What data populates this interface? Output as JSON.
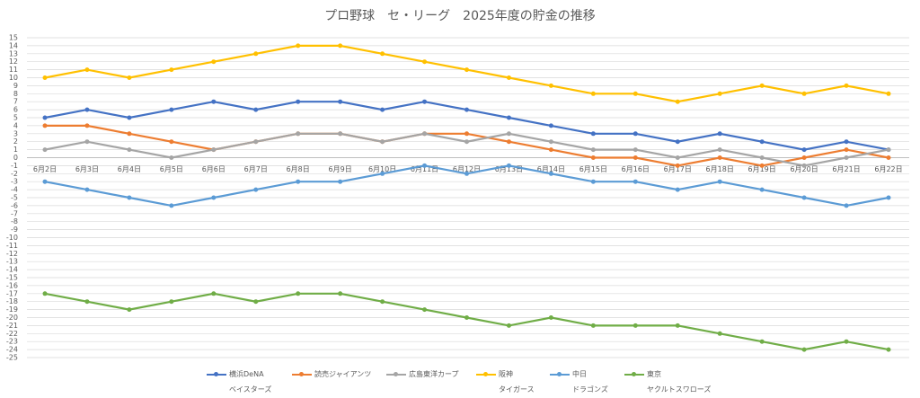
{
  "chart_data": {
    "type": "line",
    "title": "プロ野球　セ・リーグ　2025年度の貯金の推移",
    "categories": [
      "6月2日",
      "6月3日",
      "6月4日",
      "6月5日",
      "6月6日",
      "6月7日",
      "6月8日",
      "6月9日",
      "6月10日",
      "6月11日",
      "6月12日",
      "6月13日",
      "6月14日",
      "6月15日",
      "6月16日",
      "6月17日",
      "6月18日",
      "6月19日",
      "6月20日",
      "6月21日",
      "6月22日"
    ],
    "series": [
      {
        "name": "横浜DeNA\nベイスターズ",
        "color": "#4472c4",
        "values": [
          5,
          6,
          5,
          6,
          7,
          6,
          7,
          7,
          6,
          7,
          6,
          5,
          4,
          3,
          3,
          2,
          3,
          2,
          1,
          2,
          1
        ]
      },
      {
        "name": "読売ジャイアンツ",
        "color": "#ed7d31",
        "values": [
          4,
          4,
          3,
          2,
          1,
          2,
          3,
          3,
          2,
          3,
          3,
          2,
          1,
          0,
          0,
          -1,
          0,
          -1,
          0,
          1,
          0
        ]
      },
      {
        "name": "広島東洋カープ",
        "color": "#a5a5a5",
        "values": [
          1,
          2,
          1,
          0,
          1,
          2,
          3,
          3,
          2,
          3,
          2,
          3,
          2,
          1,
          1,
          0,
          1,
          0,
          -1,
          0,
          1
        ]
      },
      {
        "name": "阪神\nタイガース",
        "color": "#ffc000",
        "values": [
          10,
          11,
          10,
          11,
          12,
          13,
          14,
          14,
          13,
          12,
          11,
          10,
          9,
          8,
          8,
          7,
          8,
          9,
          8,
          9,
          8
        ]
      },
      {
        "name": "中日\nドラゴンズ",
        "color": "#5b9bd5",
        "values": [
          -3,
          -4,
          -5,
          -6,
          -5,
          -4,
          -3,
          -3,
          -2,
          -1,
          -2,
          -1,
          -2,
          -3,
          -3,
          -4,
          -3,
          -4,
          -5,
          -6,
          -5
        ]
      },
      {
        "name": "東京\nヤクルトスワローズ",
        "color": "#70ad47",
        "values": [
          -17,
          -18,
          -19,
          -18,
          -17,
          -18,
          -17,
          -17,
          -18,
          -19,
          -20,
          -21,
          -20,
          -21,
          -21,
          -21,
          -22,
          -23,
          -24,
          -23,
          -24
        ]
      }
    ],
    "ylim": [
      -25,
      15
    ],
    "yticks": [
      15,
      14,
      13,
      12,
      11,
      10,
      9,
      8,
      7,
      6,
      5,
      4,
      3,
      2,
      1,
      0,
      -1,
      -2,
      -3,
      -4,
      -5,
      -6,
      -7,
      -8,
      -9,
      -10,
      -11,
      -12,
      -13,
      -14,
      -15,
      -16,
      -17,
      -18,
      -19,
      -20,
      -21,
      -22,
      -23,
      -24,
      -25
    ],
    "grid": true,
    "legend": "bottom"
  }
}
